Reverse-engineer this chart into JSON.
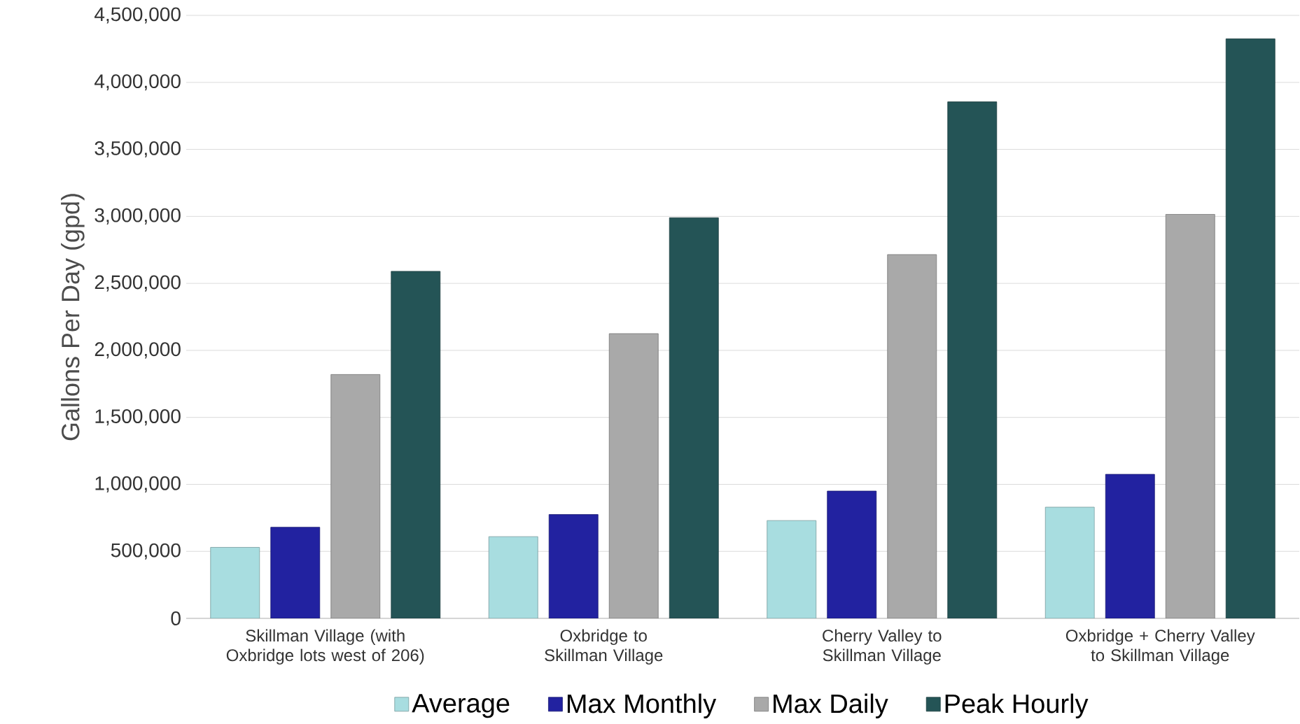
{
  "chart_data": {
    "type": "bar",
    "ylabel": "Gallons Per Day (gpd)",
    "categories": [
      "Skillman Village (with Oxbridge lots west of 206)",
      "Oxbridge to Skillman Village",
      "Cherry Valley to Skillman Village",
      "Oxbridge + Cherry Valley to Skillman Village"
    ],
    "series": [
      {
        "name": "Average",
        "color": "#a8dde0",
        "values": [
          530000,
          610000,
          730000,
          830000
        ]
      },
      {
        "name": "Max Monthly",
        "color": "#2222a0",
        "values": [
          680000,
          775000,
          950000,
          1075000
        ]
      },
      {
        "name": "Max Daily",
        "color": "#a9a9a9",
        "values": [
          1820000,
          2125000,
          2715000,
          3015000
        ]
      },
      {
        "name": "Peak Hourly",
        "color": "#245456",
        "values": [
          2590000,
          2990000,
          3855000,
          4325000
        ]
      }
    ],
    "ylim": [
      0,
      4500000
    ],
    "yticks": [
      {
        "value": 0,
        "label": "0"
      },
      {
        "value": 500000,
        "label": "500,000"
      },
      {
        "value": 1000000,
        "label": "1,000,000"
      },
      {
        "value": 1500000,
        "label": "1,500,000"
      },
      {
        "value": 2000000,
        "label": "2,000,000"
      },
      {
        "value": 2500000,
        "label": "2,500,000"
      },
      {
        "value": 3000000,
        "label": "3,000,000"
      },
      {
        "value": 3500000,
        "label": "3,500,000"
      },
      {
        "value": 4000000,
        "label": "4,000,000"
      },
      {
        "value": 4500000,
        "label": "4,500,000"
      }
    ],
    "grid": "y",
    "legend": "bottom"
  }
}
